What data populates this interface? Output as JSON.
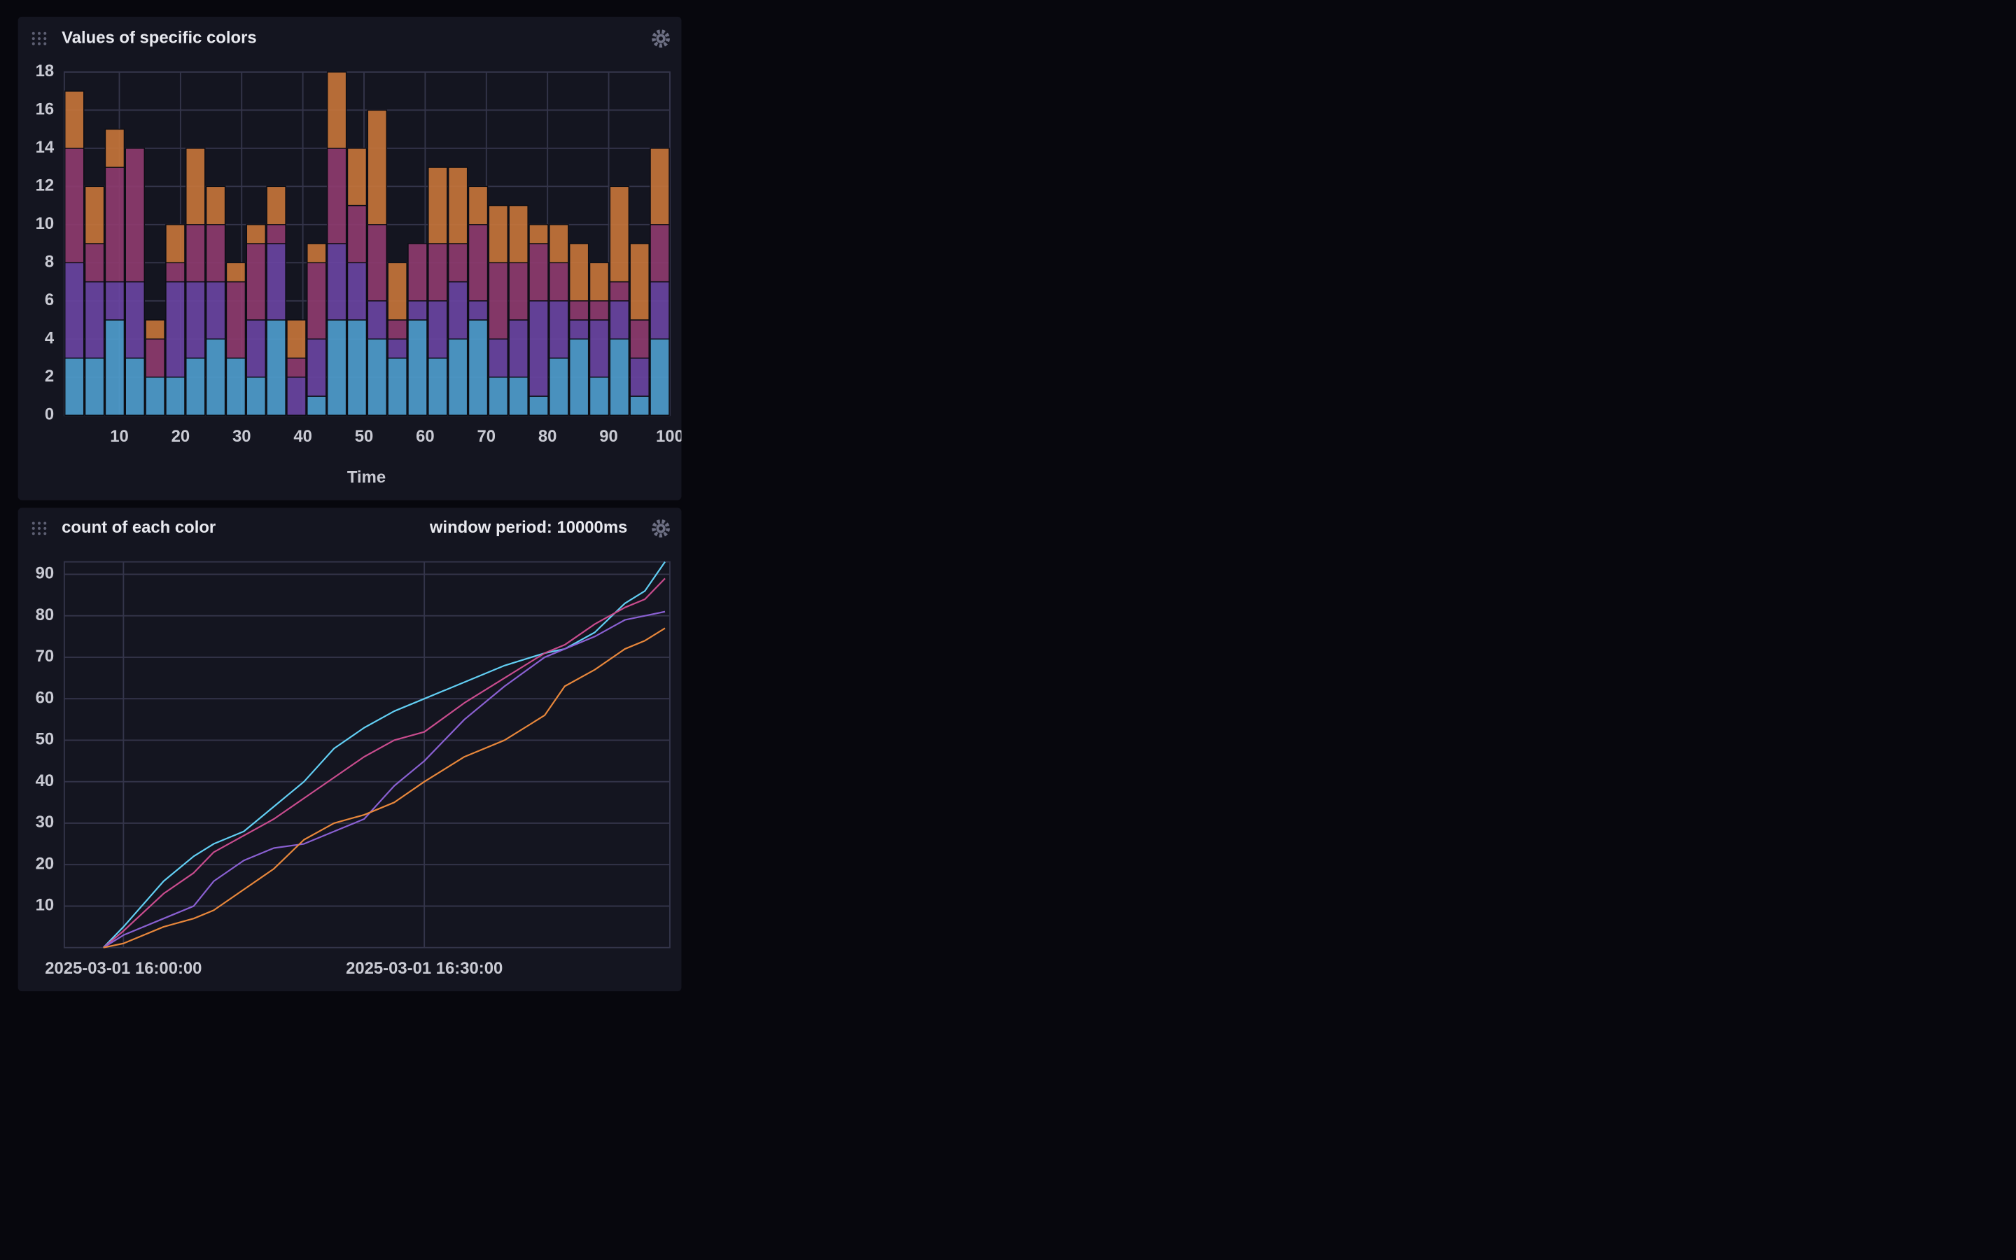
{
  "chart_data": [
    {
      "type": "histogram",
      "title": "Values of specific colors",
      "xlabel": "Time",
      "bins": [
        1,
        4.3,
        7.6,
        10.9,
        14.2,
        17.5,
        20.8,
        24.1,
        27.4,
        30.7,
        34,
        37.3,
        40.6,
        43.9,
        47.2,
        50.5,
        53.8,
        57.1,
        60.4,
        63.7,
        67,
        70.3,
        73.6,
        76.9,
        80.2,
        83.5,
        86.8,
        90.1,
        93.4,
        96.7,
        100
      ],
      "series": [
        {
          "color": "#4f9fcf",
          "values": [
            3,
            3,
            5,
            3,
            2,
            2,
            3,
            4,
            3,
            2,
            5,
            0,
            1,
            5,
            5,
            4,
            3,
            5,
            3,
            4,
            5,
            2,
            2,
            1,
            3,
            4,
            2,
            4,
            1,
            4
          ]
        },
        {
          "color": "#6a45a3",
          "values": [
            5,
            4,
            2,
            4,
            0,
            5,
            4,
            3,
            0,
            3,
            4,
            2,
            3,
            4,
            3,
            2,
            1,
            1,
            3,
            3,
            1,
            2,
            3,
            5,
            3,
            1,
            3,
            2,
            2,
            3
          ]
        },
        {
          "color": "#8f3b6f",
          "values": [
            6,
            2,
            6,
            7,
            2,
            1,
            3,
            3,
            4,
            4,
            1,
            1,
            4,
            5,
            3,
            4,
            1,
            3,
            3,
            2,
            4,
            4,
            3,
            3,
            2,
            1,
            1,
            1,
            2,
            3
          ]
        },
        {
          "color": "#c8763a",
          "values": [
            3,
            3,
            2,
            0,
            1,
            2,
            4,
            2,
            1,
            1,
            2,
            2,
            1,
            4,
            3,
            6,
            3,
            0,
            4,
            4,
            2,
            3,
            3,
            1,
            2,
            3,
            2,
            5,
            4,
            4
          ]
        }
      ],
      "xlim": [
        1,
        100
      ],
      "xticks": [
        10,
        20,
        30,
        40,
        50,
        60,
        70,
        80,
        90,
        100
      ],
      "ylim": [
        0,
        18
      ],
      "yticks": [
        0,
        2,
        4,
        6,
        8,
        10,
        12,
        14,
        16,
        18
      ],
      "grid": true
    },
    {
      "type": "line",
      "title": "count of each color",
      "annotation": "window period: 10000ms",
      "x": [
        "2025-03-01 15:58:00",
        "2025-03-01 16:00:00",
        "2025-03-01 16:04:00",
        "2025-03-01 16:07:00",
        "2025-03-01 16:09:00",
        "2025-03-01 16:12:00",
        "2025-03-01 16:15:00",
        "2025-03-01 16:18:00",
        "2025-03-01 16:21:00",
        "2025-03-01 16:24:00",
        "2025-03-01 16:27:00",
        "2025-03-01 16:30:00",
        "2025-03-01 16:34:00",
        "2025-03-01 16:38:00",
        "2025-03-01 16:42:00",
        "2025-03-01 16:44:00",
        "2025-03-01 16:47:00",
        "2025-03-01 16:50:00",
        "2025-03-01 16:52:00",
        "2025-03-01 16:54:00"
      ],
      "series": [
        {
          "color": "#62cff4",
          "values": [
            0,
            5,
            16,
            22,
            25,
            28,
            34,
            40,
            48,
            53,
            57,
            60,
            64,
            68,
            71,
            72,
            76,
            83,
            86,
            93
          ]
        },
        {
          "color": "#c94c8e",
          "values": [
            0,
            4,
            13,
            18,
            23,
            27,
            31,
            36,
            41,
            46,
            50,
            52,
            59,
            65,
            71,
            73,
            78,
            82,
            84,
            89
          ]
        },
        {
          "color": "#8a60d2",
          "values": [
            0,
            3,
            7,
            10,
            16,
            21,
            24,
            25,
            28,
            31,
            39,
            45,
            55,
            63,
            70,
            72,
            75,
            79,
            80,
            81
          ]
        },
        {
          "color": "#e8873b",
          "values": [
            0,
            1,
            5,
            7,
            9,
            14,
            19,
            26,
            30,
            32,
            35,
            40,
            46,
            50,
            56,
            63,
            67,
            72,
            74,
            77
          ]
        }
      ],
      "xlim": [
        "2025-03-01 15:54:06",
        "2025-03-01 16:54:29"
      ],
      "xticks": [
        "2025-03-01 16:00:00",
        "2025-03-01 16:30:00"
      ],
      "ylim": [
        0,
        93
      ],
      "yticks": [
        10,
        20,
        30,
        40,
        50,
        60,
        70,
        80,
        90
      ],
      "grid": true
    }
  ]
}
